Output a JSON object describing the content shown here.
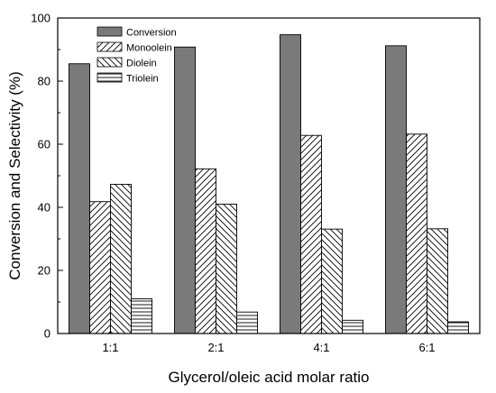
{
  "chart_data": {
    "type": "bar",
    "title": "",
    "xlabel": "Glycerol/oleic acid molar ratio",
    "ylabel": "Conversion and Selectivity (%)",
    "categories": [
      "1:1",
      "2:1",
      "4:1",
      "6:1"
    ],
    "ylim": [
      0,
      100
    ],
    "yticks": [
      0,
      20,
      40,
      60,
      80,
      100
    ],
    "grid": false,
    "legend_position": "top-left",
    "series": [
      {
        "name": "Conversion",
        "values": [
          85.5,
          90.8,
          94.7,
          91.2
        ],
        "fill": "solid",
        "color": "#7a7a7a"
      },
      {
        "name": "Monoolein",
        "values": [
          41.8,
          52.2,
          62.8,
          63.2
        ],
        "fill": "hatch-forward",
        "color": "#ffffff"
      },
      {
        "name": "Diolein",
        "values": [
          47.3,
          41.0,
          33.1,
          33.2
        ],
        "fill": "hatch-backward",
        "color": "#ffffff"
      },
      {
        "name": "Triolein",
        "values": [
          11.0,
          6.8,
          4.2,
          3.7
        ],
        "fill": "hatch-horizontal",
        "color": "#ffffff"
      }
    ]
  }
}
